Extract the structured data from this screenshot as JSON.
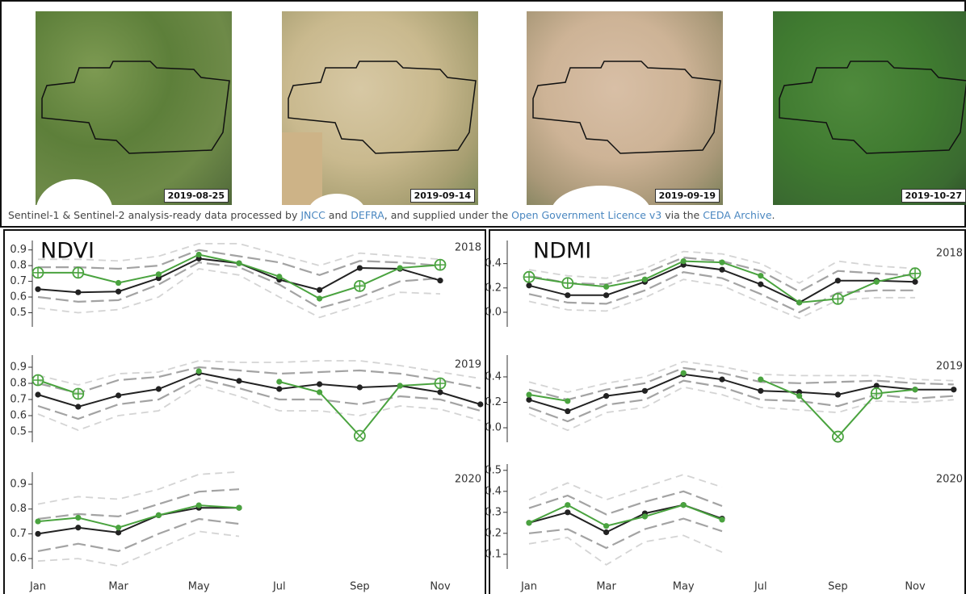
{
  "images": [
    {
      "date": "2019-08-25"
    },
    {
      "date": "2019-09-14"
    },
    {
      "date": "2019-09-19"
    },
    {
      "date": "2019-10-27"
    }
  ],
  "caption": [
    {
      "text": "Sentinel-1 & Sentinel-2 analysis-ready data processed by "
    },
    {
      "text": "JNCC",
      "link": true
    },
    {
      "text": " and "
    },
    {
      "text": "DEFRA",
      "link": true
    },
    {
      "text": ", and supplied under the "
    },
    {
      "text": "Open Government Licence v3",
      "link": true
    },
    {
      "text": " via the "
    },
    {
      "text": "CEDA Archive",
      "link": true
    },
    {
      "text": "."
    }
  ],
  "chart_data": [
    {
      "type": "line",
      "title": "NDVI",
      "categories": [
        "Jan",
        null,
        "Mar",
        null,
        "May",
        null,
        "Jul",
        null,
        "Sep",
        null,
        "Nov",
        null
      ],
      "subplots": [
        {
          "label": "2018",
          "ylim": [
            0.41,
            0.96
          ],
          "yticks": [
            0.5,
            0.6,
            0.7,
            0.8,
            0.9
          ],
          "series": [
            {
              "color": "#d4d4d4",
              "dash": "short",
              "values": [
                0.84,
                0.84,
                0.83,
                0.86,
                0.94,
                0.94,
                0.87,
                0.8,
                0.88,
                0.86,
                0.84,
                null
              ]
            },
            {
              "color": "#d4d4d4",
              "dash": "short",
              "values": [
                0.53,
                0.5,
                0.52,
                0.6,
                0.78,
                0.74,
                0.6,
                0.47,
                0.55,
                0.63,
                0.62,
                null
              ]
            },
            {
              "color": "#a3a3a3",
              "dash": "long",
              "values": [
                0.79,
                0.79,
                0.78,
                0.8,
                0.9,
                0.86,
                0.82,
                0.74,
                0.83,
                0.82,
                0.8,
                null
              ]
            },
            {
              "color": "#a3a3a3",
              "dash": "long",
              "values": [
                0.6,
                0.57,
                0.58,
                0.68,
                0.82,
                0.79,
                0.68,
                0.53,
                0.6,
                0.7,
                0.72,
                null
              ]
            },
            {
              "color": "#222222",
              "values": [
                0.65,
                0.63,
                0.635,
                0.72,
                0.845,
                0.815,
                0.71,
                0.645,
                0.785,
                0.78,
                0.705,
                null
              ]
            },
            {
              "color": "#4aa33f",
              "values": [
                0.755,
                0.755,
                0.69,
                0.745,
                0.87,
                0.815,
                0.73,
                0.59,
                0.67,
                0.785,
                0.805,
                null
              ],
              "marker_styles": [
                "circle-plus",
                "circle-plus",
                "dot",
                "dot",
                "dot",
                "dot",
                "dot",
                "dot",
                "circle-plus",
                "dot",
                "circle-plus",
                null
              ]
            }
          ]
        },
        {
          "label": "2019",
          "ylim": [
            0.435,
            0.975
          ],
          "yticks": [
            0.5,
            0.6,
            0.7,
            0.8,
            0.9
          ],
          "series": [
            {
              "color": "#d4d4d4",
              "dash": "short",
              "values": [
                0.85,
                0.79,
                0.86,
                0.87,
                0.94,
                0.93,
                0.93,
                0.94,
                0.94,
                0.91,
                0.87,
                0.83
              ]
            },
            {
              "color": "#d4d4d4",
              "dash": "short",
              "values": [
                0.61,
                0.51,
                0.6,
                0.63,
                0.79,
                0.72,
                0.63,
                0.63,
                0.6,
                0.66,
                0.64,
                0.57
              ]
            },
            {
              "color": "#a3a3a3",
              "dash": "long",
              "values": [
                0.8,
                0.74,
                0.82,
                0.84,
                0.9,
                0.88,
                0.86,
                0.87,
                0.88,
                0.86,
                0.82,
                0.77
              ]
            },
            {
              "color": "#a3a3a3",
              "dash": "long",
              "values": [
                0.66,
                0.58,
                0.67,
                0.7,
                0.83,
                0.77,
                0.7,
                0.7,
                0.67,
                0.72,
                0.7,
                0.63
              ]
            },
            {
              "color": "#222222",
              "values": [
                0.73,
                0.655,
                0.725,
                0.765,
                0.865,
                0.815,
                0.765,
                0.795,
                0.775,
                0.785,
                0.745,
                0.67
              ]
            },
            {
              "color": "#4aa33f",
              "values": [
                0.82,
                0.735,
                null,
                null,
                0.875,
                null,
                0.81,
                0.745,
                0.475,
                0.785,
                0.8,
                null
              ],
              "marker_styles": [
                "circle-plus",
                "circle-plus",
                null,
                null,
                "dot",
                null,
                "dot",
                "dot",
                "circle-x",
                "dot",
                "circle-plus",
                null
              ]
            }
          ]
        },
        {
          "label": "2020",
          "ylim": [
            0.558,
            0.949
          ],
          "yticks": [
            0.6,
            0.7,
            0.8,
            0.9
          ],
          "series": [
            {
              "color": "#d4d4d4",
              "dash": "short",
              "values": [
                0.82,
                0.85,
                0.84,
                0.88,
                0.94,
                0.95,
                null,
                null,
                null,
                null,
                null,
                null
              ]
            },
            {
              "color": "#d4d4d4",
              "dash": "short",
              "values": [
                0.59,
                0.6,
                0.57,
                0.64,
                0.71,
                0.69,
                null,
                null,
                null,
                null,
                null,
                null
              ]
            },
            {
              "color": "#a3a3a3",
              "dash": "long",
              "values": [
                0.76,
                0.78,
                0.77,
                0.82,
                0.87,
                0.88,
                null,
                null,
                null,
                null,
                null,
                null
              ]
            },
            {
              "color": "#a3a3a3",
              "dash": "long",
              "values": [
                0.63,
                0.66,
                0.63,
                0.7,
                0.76,
                0.74,
                null,
                null,
                null,
                null,
                null,
                null
              ]
            },
            {
              "color": "#222222",
              "values": [
                0.7,
                0.725,
                0.705,
                0.775,
                0.805,
                0.805,
                null,
                null,
                null,
                null,
                null,
                null
              ]
            },
            {
              "color": "#4aa33f",
              "values": [
                0.75,
                0.765,
                0.725,
                0.775,
                0.815,
                0.805,
                null,
                null,
                null,
                null,
                null,
                null
              ],
              "marker_styles": [
                "dot",
                "dot",
                "dot",
                "dot",
                "dot",
                "dot",
                null,
                null,
                null,
                null,
                null,
                null
              ]
            }
          ]
        }
      ]
    },
    {
      "type": "line",
      "title": "NDMI",
      "categories": [
        "Jan",
        null,
        "Mar",
        null,
        "May",
        null,
        "Jul",
        null,
        "Sep",
        null,
        "Nov",
        null
      ],
      "subplots": [
        {
          "label": "2018",
          "ylim": [
            -0.12,
            0.59
          ],
          "yticks": [
            {
              "value": 0,
              "label": "0.0"
            },
            0.2,
            0.4
          ],
          "series": [
            {
              "color": "#d4d4d4",
              "dash": "short",
              "values": [
                0.35,
                0.3,
                0.28,
                0.36,
                0.5,
                0.48,
                0.4,
                0.24,
                0.42,
                0.38,
                0.36,
                null
              ]
            },
            {
              "color": "#d4d4d4",
              "dash": "short",
              "values": [
                0.09,
                0.02,
                0.01,
                0.12,
                0.27,
                0.22,
                0.08,
                -0.05,
                0.1,
                0.12,
                0.12,
                null
              ]
            },
            {
              "color": "#a3a3a3",
              "dash": "long",
              "values": [
                0.3,
                0.24,
                0.23,
                0.32,
                0.45,
                0.42,
                0.34,
                0.17,
                0.34,
                0.32,
                0.3,
                null
              ]
            },
            {
              "color": "#a3a3a3",
              "dash": "long",
              "values": [
                0.15,
                0.08,
                0.07,
                0.18,
                0.33,
                0.28,
                0.15,
                0,
                0.16,
                0.18,
                0.18,
                null
              ]
            },
            {
              "color": "#222222",
              "values": [
                0.22,
                0.14,
                0.14,
                0.25,
                0.39,
                0.35,
                0.23,
                0.08,
                0.26,
                0.26,
                0.25,
                null
              ]
            },
            {
              "color": "#4aa33f",
              "values": [
                0.29,
                0.24,
                0.21,
                0.27,
                0.42,
                0.41,
                0.3,
                0.08,
                0.11,
                0.25,
                0.32,
                null
              ],
              "marker_styles": [
                "circle-plus",
                "circle-plus",
                "dot",
                "dot",
                "dot",
                "dot",
                "dot",
                "dot",
                "circle-plus",
                "dot",
                "circle-plus",
                null
              ]
            }
          ]
        },
        {
          "label": "2019",
          "ylim": [
            -0.114,
            0.571
          ],
          "yticks": [
            {
              "value": 0,
              "label": "0.0"
            },
            0.2,
            0.4
          ],
          "series": [
            {
              "color": "#d4d4d4",
              "dash": "short",
              "values": [
                0.36,
                0.28,
                0.35,
                0.4,
                0.52,
                0.48,
                0.42,
                0.41,
                0.41,
                0.41,
                0.38,
                0.37
              ]
            },
            {
              "color": "#d4d4d4",
              "dash": "short",
              "values": [
                0.11,
                -0.02,
                0.12,
                0.16,
                0.32,
                0.26,
                0.16,
                0.14,
                0.12,
                0.21,
                0.2,
                0.22
              ]
            },
            {
              "color": "#a3a3a3",
              "dash": "long",
              "values": [
                0.3,
                0.22,
                0.3,
                0.35,
                0.47,
                0.43,
                0.36,
                0.35,
                0.36,
                0.37,
                0.35,
                0.34
              ]
            },
            {
              "color": "#a3a3a3",
              "dash": "long",
              "values": [
                0.16,
                0.05,
                0.18,
                0.22,
                0.37,
                0.32,
                0.22,
                0.21,
                0.17,
                0.26,
                0.23,
                0.25
              ]
            },
            {
              "color": "#222222",
              "values": [
                0.22,
                0.13,
                0.25,
                0.29,
                0.42,
                0.38,
                0.29,
                0.28,
                0.26,
                0.33,
                0.3,
                0.3
              ]
            },
            {
              "color": "#4aa33f",
              "values": [
                0.26,
                0.21,
                null,
                null,
                0.43,
                null,
                0.38,
                0.25,
                -0.07,
                0.27,
                0.3,
                null
              ],
              "marker_styles": [
                "dot",
                "dot",
                null,
                null,
                "dot",
                null,
                "dot",
                "dot",
                "circle-x",
                "circle-plus",
                "dot",
                null
              ]
            }
          ]
        },
        {
          "label": "2020",
          "ylim": [
            0.03,
            0.53
          ],
          "yticks": [
            0.1,
            0.2,
            0.3,
            0.4,
            0.5
          ],
          "series": [
            {
              "color": "#d4d4d4",
              "dash": "short",
              "values": [
                0.36,
                0.44,
                0.36,
                0.42,
                0.48,
                0.42,
                null,
                null,
                null,
                null,
                null,
                null
              ]
            },
            {
              "color": "#d4d4d4",
              "dash": "short",
              "values": [
                0.15,
                0.18,
                0.05,
                0.16,
                0.19,
                0.11,
                null,
                null,
                null,
                null,
                null,
                null
              ]
            },
            {
              "color": "#a3a3a3",
              "dash": "long",
              "values": [
                0.32,
                0.38,
                0.29,
                0.35,
                0.4,
                0.33,
                null,
                null,
                null,
                null,
                null,
                null
              ]
            },
            {
              "color": "#a3a3a3",
              "dash": "long",
              "values": [
                0.2,
                0.22,
                0.13,
                0.22,
                0.27,
                0.21,
                null,
                null,
                null,
                null,
                null,
                null
              ]
            },
            {
              "color": "#222222",
              "values": [
                0.25,
                0.3,
                0.205,
                0.295,
                0.335,
                0.27,
                null,
                null,
                null,
                null,
                null,
                null
              ]
            },
            {
              "color": "#4aa33f",
              "values": [
                0.25,
                0.335,
                0.235,
                0.28,
                0.335,
                0.265,
                null,
                null,
                null,
                null,
                null,
                null
              ],
              "marker_styles": [
                "dot",
                "dot",
                "dot",
                "dot",
                "dot",
                "dot",
                null,
                null,
                null,
                null,
                null,
                null
              ]
            }
          ]
        }
      ]
    }
  ]
}
